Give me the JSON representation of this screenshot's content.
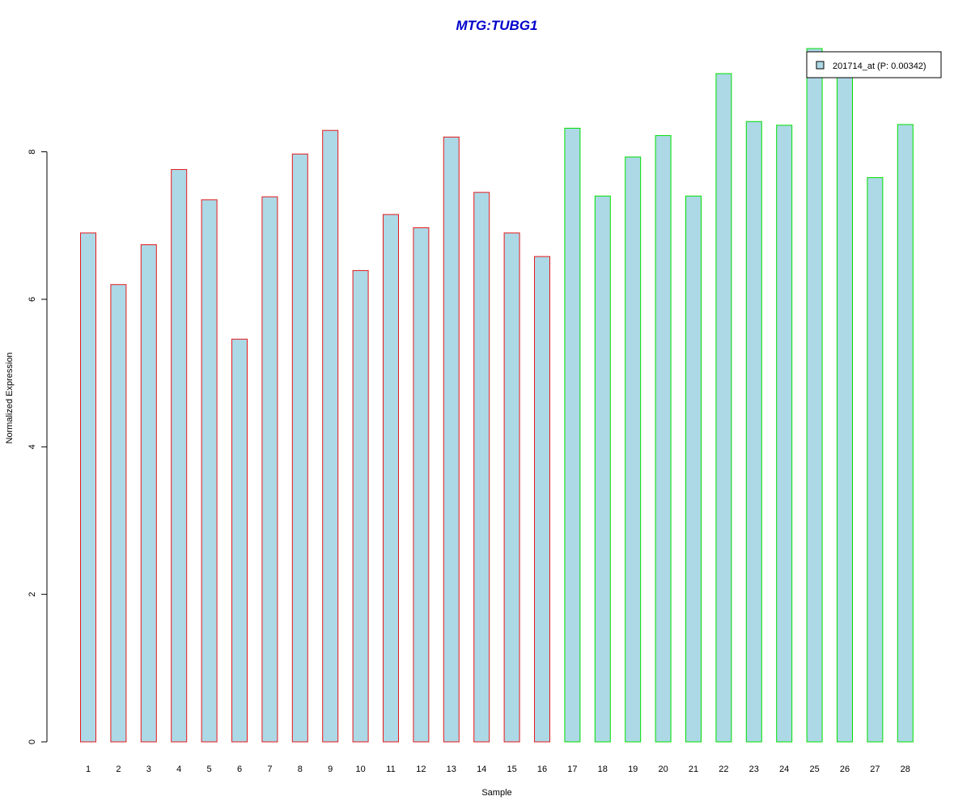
{
  "chart_data": {
    "type": "bar",
    "title": "MTG:TUBG1",
    "xlabel": "Sample",
    "ylabel": "Normalized Expression",
    "categories": [
      "1",
      "2",
      "3",
      "4",
      "5",
      "6",
      "7",
      "8",
      "9",
      "10",
      "11",
      "12",
      "13",
      "14",
      "15",
      "16",
      "17",
      "18",
      "19",
      "20",
      "21",
      "22",
      "23",
      "24",
      "25",
      "26",
      "27",
      "28"
    ],
    "series": [
      {
        "name": "201714_at (P: 0.00342)",
        "values": [
          6.9,
          6.2,
          6.74,
          7.76,
          7.35,
          5.46,
          7.39,
          7.97,
          8.29,
          6.39,
          7.15,
          6.97,
          8.2,
          7.45,
          6.9,
          6.58,
          8.32,
          7.4,
          7.93,
          8.22,
          7.4,
          9.06,
          8.41,
          8.36,
          9.4,
          9.04,
          7.65,
          8.37
        ]
      }
    ],
    "ylim": [
      0,
      9.4
    ],
    "yticks": [
      "0",
      "2",
      "4",
      "6",
      "8"
    ],
    "grid": false,
    "legend_position": "top-right",
    "colors": {
      "bar_fill": "#add8e6",
      "group1_border": "#e41a1c",
      "group2_border": "#00e000",
      "title": "#0000cc"
    },
    "groups": [
      {
        "samples": [
          1,
          16
        ],
        "border": "#e41a1c"
      },
      {
        "samples": [
          17,
          28
        ],
        "border": "#00e000"
      }
    ]
  }
}
